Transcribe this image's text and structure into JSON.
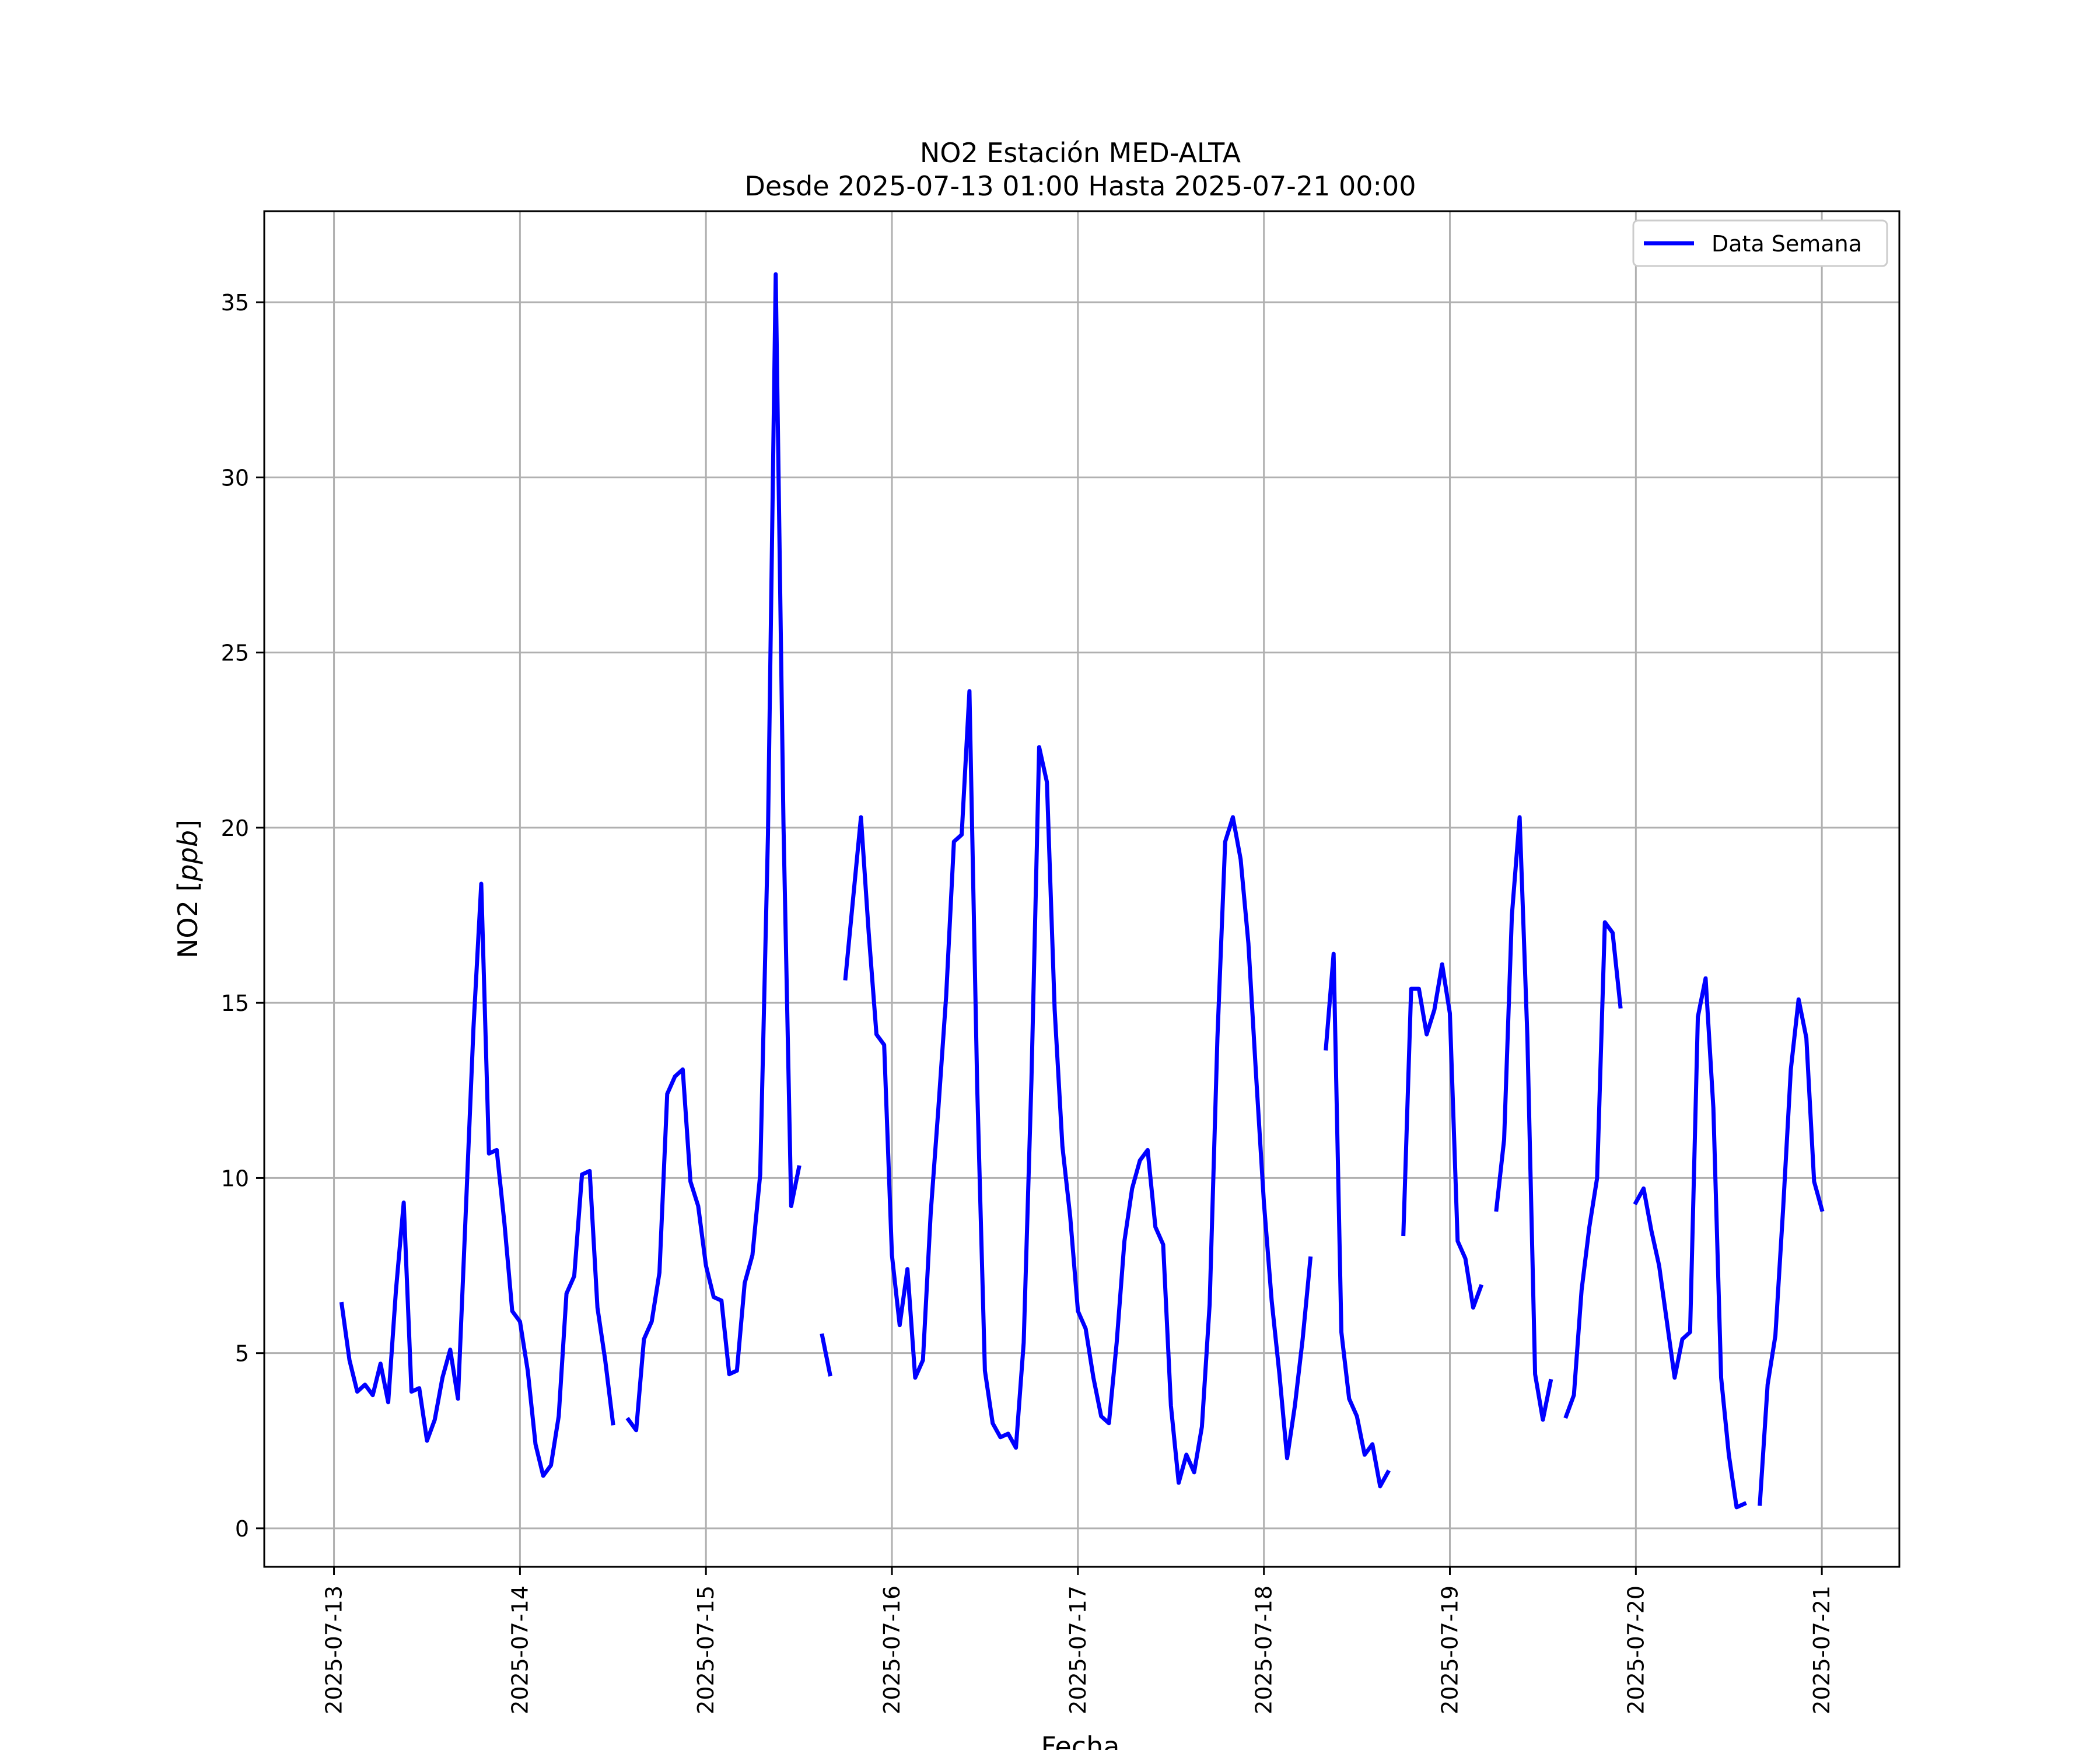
{
  "chart_data": {
    "type": "line",
    "title": "NO2 Estación MED-ALTA",
    "subtitle": "Desde 2025-07-13 01:00 Hasta 2025-07-21 00:00",
    "xlabel": "Fecha",
    "ylabel": "NO2 [ppb]",
    "ylabel_main": "NO2 [",
    "ylabel_unit": "ppb",
    "ylabel_close": "]",
    "xlim": [
      "2025-07-12 15:00",
      "2025-07-21 10:00"
    ],
    "ylim": [
      -1.1,
      37.6
    ],
    "x_tick_labels": [
      "2025-07-13",
      "2025-07-14",
      "2025-07-15",
      "2025-07-16",
      "2025-07-17",
      "2025-07-18",
      "2025-07-19",
      "2025-07-20",
      "2025-07-21"
    ],
    "y_ticks": [
      0,
      5,
      10,
      15,
      20,
      25,
      30,
      35
    ],
    "y_tick_labels": [
      "0",
      "5",
      "10",
      "15",
      "20",
      "25",
      "30",
      "35"
    ],
    "grid": true,
    "legend_position": "top-right",
    "series": [
      {
        "name": "Data Semana",
        "color": "#0000ff",
        "points": [
          [
            "2025-07-13 01:00",
            6.4
          ],
          [
            "2025-07-13 02:00",
            4.8
          ],
          [
            "2025-07-13 03:00",
            3.9
          ],
          [
            "2025-07-13 04:00",
            4.1
          ],
          [
            "2025-07-13 05:00",
            3.8
          ],
          [
            "2025-07-13 06:00",
            4.7
          ],
          [
            "2025-07-13 07:00",
            3.6
          ],
          [
            "2025-07-13 08:00",
            6.8
          ],
          [
            "2025-07-13 09:00",
            9.3
          ],
          [
            "2025-07-13 10:00",
            3.9
          ],
          [
            "2025-07-13 11:00",
            4.0
          ],
          [
            "2025-07-13 12:00",
            2.5
          ],
          [
            "2025-07-13 13:00",
            3.1
          ],
          [
            "2025-07-13 14:00",
            4.3
          ],
          [
            "2025-07-13 15:00",
            5.1
          ],
          [
            "2025-07-13 16:00",
            3.7
          ],
          [
            "2025-07-13 17:00",
            9.0
          ],
          [
            "2025-07-13 18:00",
            14.3
          ],
          [
            "2025-07-13 19:00",
            18.4
          ],
          [
            "2025-07-13 20:00",
            10.7
          ],
          [
            "2025-07-13 21:00",
            10.8
          ],
          [
            "2025-07-13 22:00",
            8.7
          ],
          [
            "2025-07-13 23:00",
            6.2
          ],
          [
            "2025-07-14 00:00",
            5.9
          ],
          [
            "2025-07-14 01:00",
            4.5
          ],
          [
            "2025-07-14 02:00",
            2.4
          ],
          [
            "2025-07-14 03:00",
            1.5
          ],
          [
            "2025-07-14 04:00",
            1.8
          ],
          [
            "2025-07-14 05:00",
            3.2
          ],
          [
            "2025-07-14 06:00",
            6.7
          ],
          [
            "2025-07-14 07:00",
            7.2
          ],
          [
            "2025-07-14 08:00",
            10.1
          ],
          [
            "2025-07-14 09:00",
            10.2
          ],
          [
            "2025-07-14 10:00",
            6.3
          ],
          [
            "2025-07-14 11:00",
            4.8
          ],
          [
            "2025-07-14 12:00",
            3.0
          ],
          null,
          [
            "2025-07-14 14:00",
            3.1
          ],
          [
            "2025-07-14 15:00",
            2.8
          ],
          [
            "2025-07-14 16:00",
            5.4
          ],
          [
            "2025-07-14 17:00",
            5.9
          ],
          [
            "2025-07-14 18:00",
            7.3
          ],
          [
            "2025-07-14 19:00",
            12.4
          ],
          [
            "2025-07-14 20:00",
            12.9
          ],
          [
            "2025-07-14 21:00",
            13.1
          ],
          [
            "2025-07-14 22:00",
            9.9
          ],
          [
            "2025-07-14 23:00",
            9.2
          ],
          [
            "2025-07-15 00:00",
            7.5
          ],
          [
            "2025-07-15 01:00",
            6.6
          ],
          [
            "2025-07-15 02:00",
            6.5
          ],
          [
            "2025-07-15 03:00",
            4.4
          ],
          [
            "2025-07-15 04:00",
            4.5
          ],
          [
            "2025-07-15 05:00",
            7.0
          ],
          [
            "2025-07-15 06:00",
            7.8
          ],
          [
            "2025-07-15 07:00",
            10.1
          ],
          [
            "2025-07-15 08:00",
            19.8
          ],
          [
            "2025-07-15 09:00",
            35.8
          ],
          [
            "2025-07-15 10:00",
            20.1
          ],
          [
            "2025-07-15 11:00",
            9.2
          ],
          [
            "2025-07-15 12:00",
            10.3
          ],
          null,
          [
            "2025-07-15 15:00",
            5.5
          ],
          [
            "2025-07-15 16:00",
            4.4
          ],
          null,
          [
            "2025-07-15 18:00",
            15.7
          ],
          [
            "2025-07-15 19:00",
            18.0
          ],
          [
            "2025-07-15 20:00",
            20.3
          ],
          [
            "2025-07-15 21:00",
            17.0
          ],
          [
            "2025-07-15 22:00",
            14.1
          ],
          [
            "2025-07-15 23:00",
            13.8
          ],
          [
            "2025-07-16 00:00",
            7.8
          ],
          [
            "2025-07-16 01:00",
            5.8
          ],
          [
            "2025-07-16 02:00",
            7.4
          ],
          [
            "2025-07-16 03:00",
            4.3
          ],
          [
            "2025-07-16 04:00",
            4.8
          ],
          [
            "2025-07-16 05:00",
            9.0
          ],
          [
            "2025-07-16 06:00",
            12.0
          ],
          [
            "2025-07-16 07:00",
            15.2
          ],
          [
            "2025-07-16 08:00",
            19.6
          ],
          [
            "2025-07-16 09:00",
            19.8
          ],
          [
            "2025-07-16 10:00",
            23.9
          ],
          [
            "2025-07-16 11:00",
            12.6
          ],
          [
            "2025-07-16 12:00",
            4.5
          ],
          [
            "2025-07-16 13:00",
            3.0
          ],
          [
            "2025-07-16 14:00",
            2.6
          ],
          [
            "2025-07-16 15:00",
            2.7
          ],
          [
            "2025-07-16 16:00",
            2.3
          ],
          [
            "2025-07-16 17:00",
            5.3
          ],
          [
            "2025-07-16 18:00",
            12.8
          ],
          [
            "2025-07-16 19:00",
            22.3
          ],
          [
            "2025-07-16 20:00",
            21.3
          ],
          [
            "2025-07-16 21:00",
            14.8
          ],
          [
            "2025-07-16 22:00",
            10.9
          ],
          [
            "2025-07-16 23:00",
            8.9
          ],
          [
            "2025-07-17 00:00",
            6.2
          ],
          [
            "2025-07-17 01:00",
            5.7
          ],
          [
            "2025-07-17 02:00",
            4.3
          ],
          [
            "2025-07-17 03:00",
            3.2
          ],
          [
            "2025-07-17 04:00",
            3.0
          ],
          [
            "2025-07-17 05:00",
            5.3
          ],
          [
            "2025-07-17 06:00",
            8.2
          ],
          [
            "2025-07-17 07:00",
            9.7
          ],
          [
            "2025-07-17 08:00",
            10.5
          ],
          [
            "2025-07-17 09:00",
            10.8
          ],
          [
            "2025-07-17 10:00",
            8.6
          ],
          [
            "2025-07-17 11:00",
            8.1
          ],
          [
            "2025-07-17 12:00",
            3.5
          ],
          [
            "2025-07-17 13:00",
            1.3
          ],
          [
            "2025-07-17 14:00",
            2.1
          ],
          [
            "2025-07-17 15:00",
            1.6
          ],
          [
            "2025-07-17 16:00",
            2.9
          ],
          [
            "2025-07-17 17:00",
            6.4
          ],
          [
            "2025-07-17 18:00",
            14.0
          ],
          [
            "2025-07-17 19:00",
            19.6
          ],
          [
            "2025-07-17 20:00",
            20.3
          ],
          [
            "2025-07-17 21:00",
            19.1
          ],
          [
            "2025-07-17 22:00",
            16.7
          ],
          [
            "2025-07-17 23:00",
            12.9
          ],
          [
            "2025-07-18 00:00",
            9.3
          ],
          [
            "2025-07-18 01:00",
            6.5
          ],
          [
            "2025-07-18 02:00",
            4.4
          ],
          [
            "2025-07-18 03:00",
            2.0
          ],
          [
            "2025-07-18 04:00",
            3.5
          ],
          [
            "2025-07-18 05:00",
            5.4
          ],
          [
            "2025-07-18 06:00",
            7.7
          ],
          null,
          [
            "2025-07-18 08:00",
            13.7
          ],
          [
            "2025-07-18 09:00",
            16.4
          ],
          [
            "2025-07-18 10:00",
            5.6
          ],
          [
            "2025-07-18 11:00",
            3.7
          ],
          [
            "2025-07-18 12:00",
            3.2
          ],
          [
            "2025-07-18 13:00",
            2.1
          ],
          [
            "2025-07-18 14:00",
            2.4
          ],
          [
            "2025-07-18 15:00",
            1.2
          ],
          [
            "2025-07-18 16:00",
            1.6
          ],
          null,
          [
            "2025-07-18 18:00",
            8.4
          ],
          [
            "2025-07-18 19:00",
            15.4
          ],
          [
            "2025-07-18 20:00",
            15.4
          ],
          [
            "2025-07-18 21:00",
            14.1
          ],
          [
            "2025-07-18 22:00",
            14.8
          ],
          [
            "2025-07-18 23:00",
            16.1
          ],
          [
            "2025-07-19 00:00",
            14.7
          ],
          [
            "2025-07-19 01:00",
            8.2
          ],
          [
            "2025-07-19 02:00",
            7.7
          ],
          [
            "2025-07-19 03:00",
            6.3
          ],
          [
            "2025-07-19 04:00",
            6.9
          ],
          null,
          [
            "2025-07-19 06:00",
            9.1
          ],
          [
            "2025-07-19 07:00",
            11.1
          ],
          [
            "2025-07-19 08:00",
            17.5
          ],
          [
            "2025-07-19 09:00",
            20.3
          ],
          [
            "2025-07-19 10:00",
            14.0
          ],
          [
            "2025-07-19 11:00",
            4.4
          ],
          [
            "2025-07-19 12:00",
            3.1
          ],
          [
            "2025-07-19 13:00",
            4.2
          ],
          null,
          [
            "2025-07-19 15:00",
            3.2
          ],
          [
            "2025-07-19 16:00",
            3.8
          ],
          [
            "2025-07-19 17:00",
            6.8
          ],
          [
            "2025-07-19 18:00",
            8.6
          ],
          [
            "2025-07-19 19:00",
            10.0
          ],
          [
            "2025-07-19 20:00",
            17.3
          ],
          [
            "2025-07-19 21:00",
            17.0
          ],
          [
            "2025-07-19 22:00",
            14.9
          ],
          null,
          [
            "2025-07-20 00:00",
            9.3
          ],
          [
            "2025-07-20 01:00",
            9.7
          ],
          [
            "2025-07-20 02:00",
            8.5
          ],
          [
            "2025-07-20 03:00",
            7.5
          ],
          [
            "2025-07-20 04:00",
            5.9
          ],
          [
            "2025-07-20 05:00",
            4.3
          ],
          [
            "2025-07-20 06:00",
            5.4
          ],
          [
            "2025-07-20 07:00",
            5.6
          ],
          [
            "2025-07-20 08:00",
            14.6
          ],
          [
            "2025-07-20 09:00",
            15.7
          ],
          [
            "2025-07-20 10:00",
            12.0
          ],
          [
            "2025-07-20 11:00",
            4.3
          ],
          [
            "2025-07-20 12:00",
            2.1
          ],
          [
            "2025-07-20 13:00",
            0.6
          ],
          [
            "2025-07-20 14:00",
            0.7
          ],
          null,
          [
            "2025-07-20 16:00",
            0.7
          ],
          [
            "2025-07-20 17:00",
            4.1
          ],
          [
            "2025-07-20 18:00",
            5.5
          ],
          [
            "2025-07-20 19:00",
            9.1
          ],
          [
            "2025-07-20 20:00",
            13.1
          ],
          [
            "2025-07-20 21:00",
            15.1
          ],
          [
            "2025-07-20 22:00",
            14.0
          ],
          [
            "2025-07-20 23:00",
            9.9
          ],
          [
            "2025-07-21 00:00",
            9.1
          ]
        ]
      }
    ]
  }
}
